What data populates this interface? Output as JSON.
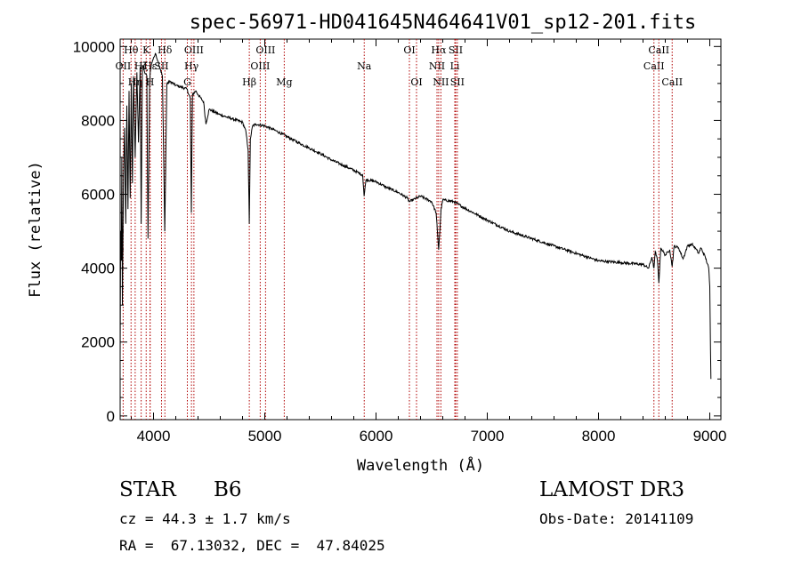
{
  "chart_data": {
    "type": "line",
    "title": "spec-56971-HD041645N464641V01_sp12-201.fits",
    "xlabel": "Wavelength (Å)",
    "ylabel": "Flux (relative)",
    "xlim": [
      3700,
      9100
    ],
    "ylim": [
      -100,
      10200
    ],
    "xticks": [
      4000,
      5000,
      6000,
      7000,
      8000,
      9000
    ],
    "yticks": [
      0,
      2000,
      4000,
      6000,
      8000,
      10000
    ],
    "xtick_labels": [
      "4000",
      "5000",
      "6000",
      "7000",
      "8000",
      "9000"
    ],
    "ytick_labels": [
      "0",
      "2000",
      "4000",
      "6000",
      "8000",
      "10000"
    ],
    "series": [
      {
        "name": "flux",
        "x": [
          3700,
          3705,
          3710,
          3715,
          3720,
          3730,
          3740,
          3750,
          3760,
          3770,
          3780,
          3790,
          3800,
          3810,
          3820,
          3835,
          3850,
          3865,
          3880,
          3889,
          3900,
          3920,
          3940,
          3950,
          3965,
          3970,
          3980,
          4000,
          4020,
          4040,
          4060,
          4080,
          4101,
          4120,
          4150,
          4200,
          4250,
          4300,
          4330,
          4340,
          4350,
          4380,
          4400,
          4450,
          4471,
          4500,
          4600,
          4700,
          4800,
          4830,
          4850,
          4861,
          4870,
          4890,
          4920,
          5000,
          5100,
          5200,
          5300,
          5400,
          5500,
          5600,
          5700,
          5800,
          5880,
          5893,
          5910,
          6000,
          6100,
          6200,
          6280,
          6300,
          6400,
          6500,
          6540,
          6563,
          6585,
          6600,
          6700,
          6800,
          6900,
          7000,
          7200,
          7400,
          7600,
          7800,
          8000,
          8200,
          8400,
          8450,
          8480,
          8498,
          8510,
          8530,
          8542,
          8560,
          8600,
          8640,
          8662,
          8680,
          8720,
          8760,
          8800,
          8840,
          8880,
          8900,
          8920,
          8960,
          8990,
          9000,
          9010
        ],
        "y": [
          1600,
          5000,
          4200,
          7000,
          3000,
          6500,
          7800,
          5200,
          8400,
          5600,
          8800,
          5900,
          9000,
          6300,
          9200,
          7000,
          9300,
          7400,
          9450,
          5200,
          9500,
          9300,
          9200,
          4800,
          9000,
          9300,
          9500,
          9700,
          9800,
          9600,
          9400,
          9200,
          5000,
          9000,
          9050,
          8950,
          8900,
          8850,
          8600,
          5500,
          8700,
          8800,
          8700,
          8500,
          7900,
          8300,
          8150,
          8050,
          7950,
          7700,
          7200,
          5200,
          7500,
          7850,
          7900,
          7850,
          7720,
          7560,
          7400,
          7250,
          7100,
          6930,
          6790,
          6650,
          6520,
          5950,
          6400,
          6340,
          6180,
          6050,
          5900,
          5800,
          5950,
          5800,
          5500,
          4500,
          5600,
          5850,
          5800,
          5620,
          5460,
          5300,
          5000,
          4800,
          4600,
          4400,
          4200,
          4150,
          4100,
          4000,
          4300,
          4000,
          4450,
          4200,
          3600,
          4550,
          4350,
          4500,
          4050,
          4600,
          4550,
          4250,
          4600,
          4650,
          4500,
          4400,
          4550,
          4300,
          4000,
          3500,
          1000
        ]
      }
    ],
    "lines": [
      {
        "name": "OII",
        "wl": 3727,
        "label": "OII",
        "row": 2
      },
      {
        "name": "Hθ",
        "wl": 3798,
        "label": "Hθ",
        "row": 1
      },
      {
        "name": "Hη",
        "wl": 3835,
        "label": "Hη",
        "row": 3
      },
      {
        "name": "Hζ",
        "wl": 3889,
        "label": "Hζ",
        "row": 2
      },
      {
        "name": "CaK",
        "wl": 3934,
        "label": "K",
        "row": 1
      },
      {
        "name": "Hε",
        "wl": 3970,
        "label": "Hε",
        "row": 2
      },
      {
        "name": "CaH",
        "wl": 3968,
        "label": "H",
        "row": 3
      },
      {
        "name": "SII",
        "wl": 4072,
        "label": "SII",
        "row": 2
      },
      {
        "name": "Hδ",
        "wl": 4102,
        "label": "Hδ",
        "row": 1
      },
      {
        "name": "G",
        "wl": 4304,
        "label": "G",
        "row": 3
      },
      {
        "name": "OIII",
        "wl": 4363,
        "label": "OIII",
        "row": 1
      },
      {
        "name": "Hγ",
        "wl": 4341,
        "label": "Hγ",
        "row": 2
      },
      {
        "name": "Hβ",
        "wl": 4861,
        "label": "Hβ",
        "row": 3
      },
      {
        "name": "OIII",
        "wl": 4959,
        "label": "OIII",
        "row": 2
      },
      {
        "name": "OIII",
        "wl": 5007,
        "label": "OIII",
        "row": 1
      },
      {
        "name": "Mg",
        "wl": 5175,
        "label": "Mg",
        "row": 3
      },
      {
        "name": "Na",
        "wl": 5894,
        "label": "Na",
        "row": 2
      },
      {
        "name": "OI",
        "wl": 6300,
        "label": "OI",
        "row": 1
      },
      {
        "name": "OI",
        "wl": 6364,
        "label": "OI",
        "row": 3
      },
      {
        "name": "NII",
        "wl": 6548,
        "label": "NII",
        "row": 2
      },
      {
        "name": "Hα",
        "wl": 6563,
        "label": "Hα",
        "row": 1
      },
      {
        "name": "NII",
        "wl": 6583,
        "label": "NII",
        "row": 3
      },
      {
        "name": "Li",
        "wl": 6708,
        "label": "Li",
        "row": 2
      },
      {
        "name": "SII",
        "wl": 6716,
        "label": "SII",
        "row": 1
      },
      {
        "name": "SII",
        "wl": 6731,
        "label": "SII",
        "row": 3
      },
      {
        "name": "CaII",
        "wl": 8498,
        "label": "CaII",
        "row": 2
      },
      {
        "name": "CaII",
        "wl": 8542,
        "label": "CaII",
        "row": 1
      },
      {
        "name": "CaII",
        "wl": 8662,
        "label": "CaII",
        "row": 3
      }
    ]
  },
  "info": {
    "class_label": "STAR",
    "subclass": "B6",
    "survey": "LAMOST DR3",
    "cz": "cz = 44.3 ± 1.7 km/s",
    "obs_date": "Obs-Date: 20141109",
    "radec": "RA =  67.13032, DEC =  47.84025"
  }
}
